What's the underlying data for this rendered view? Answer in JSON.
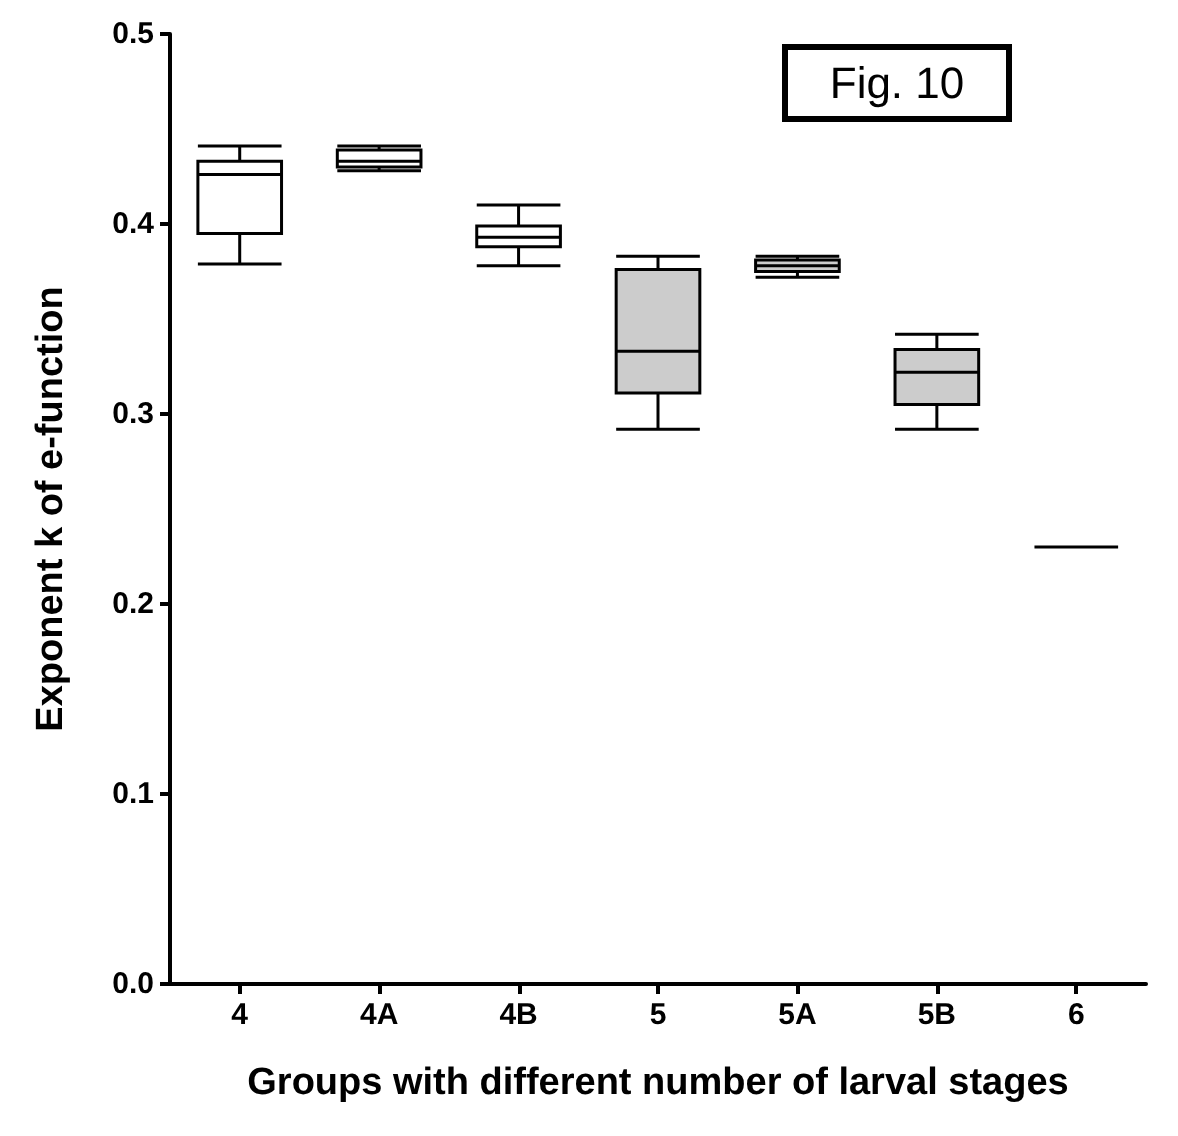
{
  "chart_data": {
    "type": "box",
    "xlabel": "Groups with different number of larval stages",
    "ylabel": "Exponent k of e-function",
    "annotations": [
      "Fig. 10"
    ],
    "categories": [
      "4",
      "4A",
      "4B",
      "5",
      "5A",
      "5B",
      "6"
    ],
    "boxes": [
      {
        "low": 0.379,
        "q1": 0.395,
        "median": 0.426,
        "q3": 0.433,
        "high": 0.441
      },
      {
        "low": 0.428,
        "q1": 0.43,
        "median": 0.433,
        "q3": 0.439,
        "high": 0.441
      },
      {
        "low": 0.378,
        "q1": 0.388,
        "median": 0.393,
        "q3": 0.399,
        "high": 0.41
      },
      {
        "low": 0.292,
        "q1": 0.311,
        "median": 0.333,
        "q3": 0.376,
        "high": 0.383
      },
      {
        "low": 0.372,
        "q1": 0.375,
        "median": 0.378,
        "q3": 0.381,
        "high": 0.383
      },
      {
        "low": 0.292,
        "q1": 0.305,
        "median": 0.322,
        "q3": 0.334,
        "high": 0.342
      },
      {
        "low": 0.23,
        "q1": 0.23,
        "median": 0.23,
        "q3": 0.23,
        "high": 0.23
      }
    ],
    "colors": [
      "#ffffff",
      "#ffffff",
      "#ffffff",
      "#cccccc",
      "#cccccc",
      "#cccccc",
      "#000000"
    ],
    "ylim": [
      0,
      0.5
    ],
    "yticks": [
      {
        "value": 0,
        "label": "0.0"
      },
      {
        "value": 0.1,
        "label": "0.1"
      },
      {
        "value": 0.2,
        "label": "0.2"
      },
      {
        "value": 0.3,
        "label": "0.3"
      },
      {
        "value": 0.4,
        "label": "0.4"
      },
      {
        "value": 0.5,
        "label": "0.5"
      }
    ],
    "grid": false
  }
}
